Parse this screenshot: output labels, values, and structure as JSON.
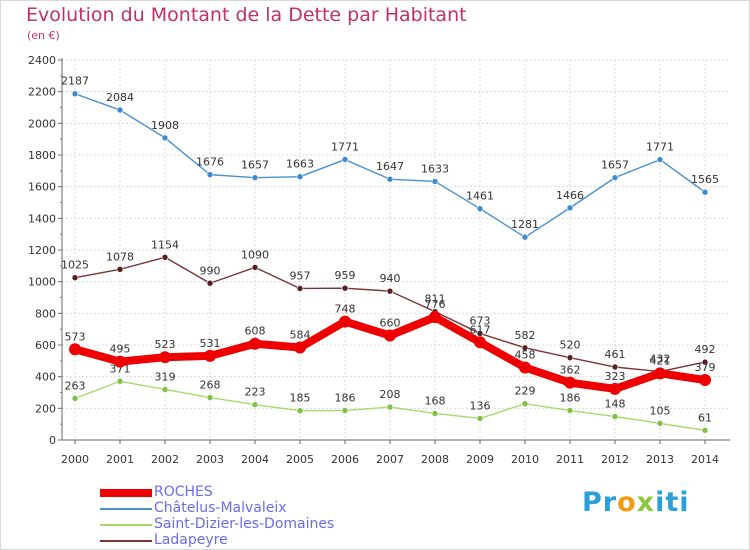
{
  "header": {
    "title": "Evolution du Montant de la Dette par Habitant",
    "unit": "(en €)"
  },
  "logo": {
    "text": "Proxiti"
  },
  "chart_data": {
    "type": "line",
    "title": "Evolution du Montant de la Dette par Habitant",
    "subtitle": "(en €)",
    "xlabel": "",
    "ylabel": "",
    "categories": [
      "2000",
      "2001",
      "2002",
      "2003",
      "2004",
      "2005",
      "2006",
      "2007",
      "2008",
      "2009",
      "2010",
      "2011",
      "2012",
      "2013",
      "2014"
    ],
    "ylim": [
      0,
      2400
    ],
    "yticks": [
      0,
      200,
      400,
      600,
      800,
      1000,
      1200,
      1400,
      1600,
      1800,
      2000,
      2200,
      2400
    ],
    "grid": true,
    "legend_position": "bottom-left",
    "series": [
      {
        "name": "Châtelus-Malvaleix",
        "color": "#4a8fd0",
        "marker": "#3a8ad4",
        "values": [
          2187,
          2084,
          1908,
          1676,
          1657,
          1663,
          1771,
          1647,
          1633,
          1461,
          1281,
          1466,
          1657,
          1771,
          1565
        ]
      },
      {
        "name": "Ladapeyre",
        "color": "#7a3434",
        "marker": "#5a1c1c",
        "values": [
          1025,
          1078,
          1154,
          990,
          1090,
          957,
          959,
          940,
          811,
          673,
          582,
          520,
          461,
          432,
          492
        ]
      },
      {
        "name": "Saint-Dizier-les-Domaines",
        "color": "#a6d96a",
        "marker": "#7cc241",
        "values": [
          263,
          371,
          319,
          268,
          223,
          185,
          186,
          208,
          168,
          136,
          229,
          186,
          148,
          105,
          61
        ]
      },
      {
        "name": "ROCHES",
        "color": "#ee0000",
        "marker": "#ee0000",
        "values": [
          573,
          495,
          523,
          531,
          608,
          584,
          748,
          660,
          776,
          617,
          458,
          362,
          323,
          421,
          379
        ]
      }
    ]
  }
}
